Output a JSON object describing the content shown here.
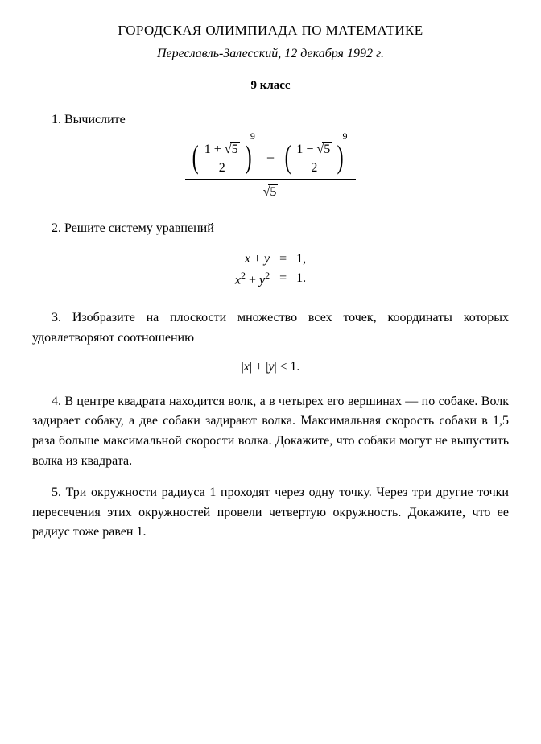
{
  "title": "ГОРОДСКАЯ ОЛИМПИАДА ПО МАТЕМАТИКЕ",
  "subtitle": "Переславль-Залесский, 12 декабря 1992 г.",
  "grade": "9 класс",
  "p1": {
    "num": "1.",
    "text": "Вычислите",
    "inner_num_left": "1 + ",
    "inner_num_right": "1 − ",
    "sqrt_val": "5",
    "inner_den": "2",
    "power": "9",
    "outer_den_sqrt": "5"
  },
  "p2": {
    "num": "2.",
    "text": "Решите систему уравнений",
    "row1_lhs_a": "x",
    "row1_lhs_b": "y",
    "row1_rhs": "1,",
    "row2_lhs_a": "x",
    "row2_lhs_b": "y",
    "row2_rhs": "1.",
    "eq": "="
  },
  "p3": {
    "num": "3.",
    "text": "Изобразите на плоскости множество всех точек, координаты которых удовлетворяют соотношению",
    "math": "|x| + |y| ≤ 1."
  },
  "p4": {
    "num": "4.",
    "text": "В центре квадрата находится волк, а в четырех его вершинах — по собаке. Волк задирает собаку, а две собаки задирают волка. Максимальная скорость собаки в 1,5 раза больше максимальной скорости волка. Докажите, что собаки могут не выпустить волка из квадрата."
  },
  "p5": {
    "num": "5.",
    "text": "Три окружности радиуса 1 проходят через одну точку. Через три другие точки пересечения этих окружностей провели четвертую окружность. Докажите, что ее радиус тоже равен 1."
  },
  "style": {
    "text_color": "#000000",
    "background": "#ffffff",
    "body_fontsize": 16,
    "title_fontsize": 17,
    "math_rule_color": "#000000"
  }
}
